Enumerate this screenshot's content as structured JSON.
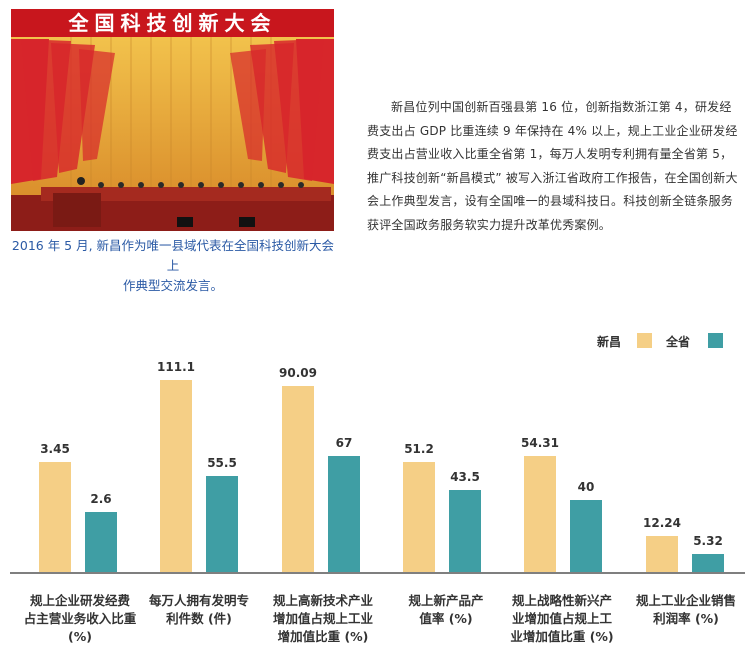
{
  "photo": {
    "banner_text": "全国科技创新大会",
    "colors": {
      "banner_bg": "#c8161d",
      "banner_text": "#ffffff",
      "flag": "#d7262b",
      "curtain": "#e7a93b"
    }
  },
  "caption": {
    "line1": "2016 年 5 月, 新昌作为唯一县域代表在全国科技创新大会上",
    "line2": "作典型交流发言。"
  },
  "paragraph": "新昌位列中国创新百强县第 16 位，创新指数浙江第 4，研发经费支出占 GDP 比重连续 9 年保持在 4% 以上，规上工业企业研发经费支出占营业收入比重全省第 1，每万人发明专利拥有量全省第 5，推广科技创新“新昌模式” 被写入浙江省政府工作报告，在全国创新大会上作典型发言，设有全国唯一的县域科技日。科技创新全链条服务获评全国政务服务软实力提升改革优秀案例。",
  "legend": {
    "xinchang": "新昌",
    "province": "全省"
  },
  "colors": {
    "xinchang": "#f5cf86",
    "province": "#3f9ea4",
    "axis": "#555555"
  },
  "chart_data": {
    "type": "bar",
    "categories": [
      "规上企业研发经费\n占主营业务收入比重\n(%)",
      "每万人拥有发明专\n利件数 (件)",
      "规上高新技术产业\n增加值占规上工业\n增加值比重 (%)",
      "规上新产品产\n值率 (%)",
      "规上战略性新兴产\n业增加值占规上工\n业增加值比重 (%)",
      "规上工业企业销售\n利润率 (%)"
    ],
    "series": [
      {
        "name": "新昌",
        "values": [
          "3.45",
          "111.1",
          "90.09",
          "51.2",
          "54.31",
          "12.24"
        ]
      },
      {
        "name": "全省",
        "values": [
          "2.6",
          "55.5",
          "67",
          "43.5",
          "40",
          "5.32"
        ]
      }
    ],
    "bar_scale": [
      [
        0.55,
        0.3
      ],
      [
        0.96,
        0.48
      ],
      [
        0.93,
        0.58
      ],
      [
        0.55,
        0.41
      ],
      [
        0.58,
        0.36
      ],
      [
        0.18,
        0.09
      ]
    ]
  }
}
